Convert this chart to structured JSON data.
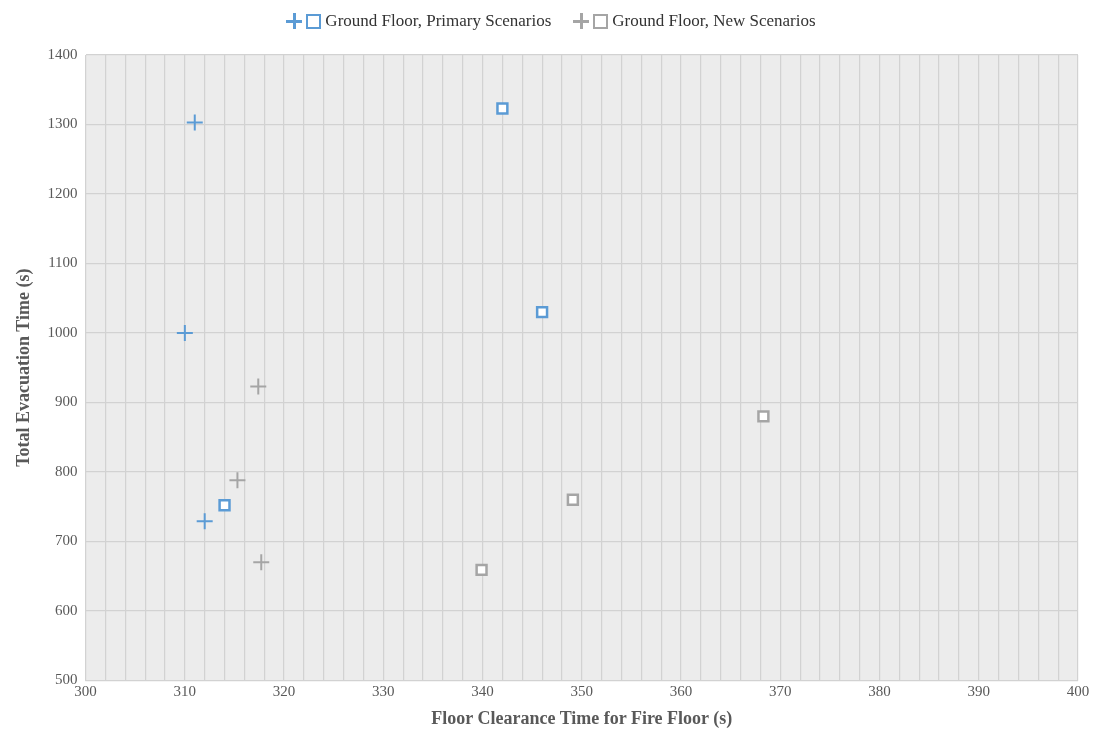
{
  "chart_data": {
    "type": "scatter",
    "xlabel": "Floor Clearance Time for Fire Floor (s)",
    "ylabel": "Total Evacuation Time (s)",
    "series": [
      {
        "name": "Ground Floor, Primary Scenarios",
        "color": "#5b9bd5",
        "marker": "cross",
        "x": [
          311,
          310,
          312
        ],
        "values": [
          1303,
          1000,
          729
        ]
      },
      {
        "color": "#5b9bd5",
        "marker": "square",
        "x": [
          342,
          346,
          314
        ],
        "values": [
          1323,
          1030,
          752
        ]
      },
      {
        "name": "Ground Floor, New Scenarios",
        "color": "#a5a5a5",
        "marker": "cross",
        "x": [
          317.4,
          315.3,
          317.7
        ],
        "values": [
          923,
          788,
          670
        ]
      },
      {
        "color": "#a5a5a5",
        "marker": "square",
        "x": [
          368.3,
          349.1,
          339.9
        ],
        "values": [
          880,
          760,
          659
        ]
      }
    ],
    "xlim": [
      300,
      400
    ],
    "ylim": [
      500,
      1400
    ],
    "xticks": [
      300,
      {
        "value": 302,
        "label": null
      },
      {
        "value": 304,
        "label": null
      },
      {
        "value": 306,
        "label": null
      },
      {
        "value": 308,
        "label": null
      },
      310,
      {
        "value": 312,
        "label": null
      },
      {
        "value": 314,
        "label": null
      },
      {
        "value": 316,
        "label": null
      },
      {
        "value": 318,
        "label": null
      },
      320,
      {
        "value": 322,
        "label": null
      },
      {
        "value": 324,
        "label": null
      },
      {
        "value": 326,
        "label": null
      },
      {
        "value": 328,
        "label": null
      },
      330,
      {
        "value": 332,
        "label": null
      },
      {
        "value": 334,
        "label": null
      },
      {
        "value": 336,
        "label": null
      },
      {
        "value": 338,
        "label": null
      },
      340,
      {
        "value": 342,
        "label": null
      },
      {
        "value": 344,
        "label": null
      },
      {
        "value": 346,
        "label": null
      },
      {
        "value": 348,
        "label": null
      },
      350,
      {
        "value": 352,
        "label": null
      },
      {
        "value": 354,
        "label": null
      },
      {
        "value": 356,
        "label": null
      },
      {
        "value": 358,
        "label": null
      },
      360,
      {
        "value": 362,
        "label": null
      },
      {
        "value": 364,
        "label": null
      },
      {
        "value": 366,
        "label": null
      },
      {
        "value": 368,
        "label": null
      },
      370,
      {
        "value": 372,
        "label": null
      },
      {
        "value": 374,
        "label": null
      },
      {
        "value": 376,
        "label": null
      },
      {
        "value": 378,
        "label": null
      },
      380,
      {
        "value": 382,
        "label": null
      },
      {
        "value": 384,
        "label": null
      },
      {
        "value": 386,
        "label": null
      },
      {
        "value": 388,
        "label": null
      },
      390,
      {
        "value": 392,
        "label": null
      },
      {
        "value": 394,
        "label": null
      },
      {
        "value": 396,
        "label": null
      },
      {
        "value": 398,
        "label": null
      },
      400
    ],
    "yticks": [
      500,
      600,
      700,
      800,
      900,
      1000,
      1100,
      1200,
      1300,
      1400
    ],
    "grid": true,
    "legend": "top"
  }
}
